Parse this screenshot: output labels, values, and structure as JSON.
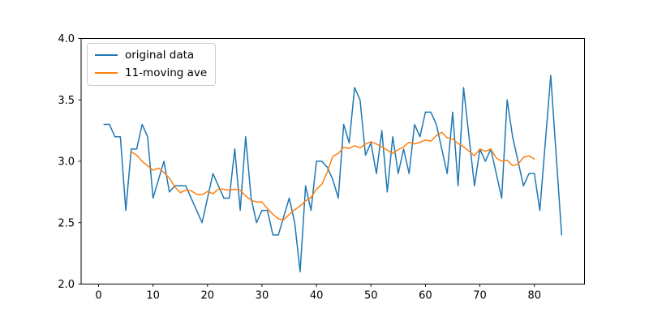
{
  "chart_data": {
    "type": "line",
    "title": "",
    "xlabel": "",
    "ylabel": "",
    "grid": false,
    "legend_position": "upper left",
    "xlim": [
      -3.2,
      89.2
    ],
    "ylim": [
      2.0,
      4.0
    ],
    "x_ticks": [
      0,
      10,
      20,
      30,
      40,
      50,
      60,
      70,
      80
    ],
    "x_tick_labels": [
      "0",
      "10",
      "20",
      "30",
      "40",
      "50",
      "60",
      "70",
      "80"
    ],
    "y_ticks": [
      2.0,
      2.5,
      3.0,
      3.5,
      4.0
    ],
    "y_tick_labels": [
      "2.0",
      "2.5",
      "3.0",
      "3.5",
      "4.0"
    ],
    "series": [
      {
        "name": "original data",
        "color": "#1f77b4",
        "x_start": 1,
        "values": [
          3.3,
          3.3,
          3.2,
          3.2,
          2.6,
          3.1,
          3.1,
          3.3,
          3.2,
          2.7,
          2.85,
          3.0,
          2.75,
          2.8,
          2.8,
          2.8,
          2.7,
          2.6,
          2.5,
          2.7,
          2.9,
          2.8,
          2.7,
          2.7,
          3.1,
          2.6,
          3.2,
          2.7,
          2.5,
          2.6,
          2.6,
          2.4,
          2.4,
          2.55,
          2.7,
          2.5,
          2.1,
          2.8,
          2.6,
          3.0,
          3.0,
          2.95,
          2.85,
          2.7,
          3.3,
          3.15,
          3.6,
          3.5,
          3.05,
          3.15,
          2.9,
          3.25,
          2.75,
          3.2,
          2.9,
          3.1,
          2.9,
          3.3,
          3.2,
          3.4,
          3.4,
          3.3,
          3.1,
          2.9,
          3.4,
          2.8,
          3.6,
          3.2,
          2.8,
          3.1,
          3.0,
          3.1,
          2.9,
          2.7,
          3.5,
          3.2,
          3.0,
          2.8,
          2.9,
          2.9,
          2.6,
          3.15,
          3.7,
          3.05,
          2.4
        ]
      },
      {
        "name": "11-moving ave",
        "color": "#ff7f0e",
        "x_start": 6,
        "values": [
          3.077,
          3.05,
          3.0,
          2.964,
          2.927,
          2.945,
          2.909,
          2.864,
          2.791,
          2.745,
          2.764,
          2.759,
          2.732,
          2.727,
          2.755,
          2.736,
          2.773,
          2.773,
          2.764,
          2.773,
          2.764,
          2.718,
          2.682,
          2.668,
          2.668,
          2.614,
          2.568,
          2.532,
          2.523,
          2.568,
          2.605,
          2.636,
          2.677,
          2.705,
          2.773,
          2.814,
          2.914,
          3.041,
          3.064,
          3.114,
          3.105,
          3.127,
          3.109,
          3.141,
          3.159,
          3.141,
          3.118,
          3.091,
          3.064,
          3.095,
          3.118,
          3.155,
          3.141,
          3.155,
          3.173,
          3.164,
          3.209,
          3.236,
          3.191,
          3.182,
          3.145,
          3.118,
          3.082,
          3.045,
          3.1,
          3.082,
          3.1,
          3.027,
          3.0,
          3.009,
          2.964,
          2.977,
          3.032,
          3.045,
          3.018
        ]
      }
    ]
  }
}
